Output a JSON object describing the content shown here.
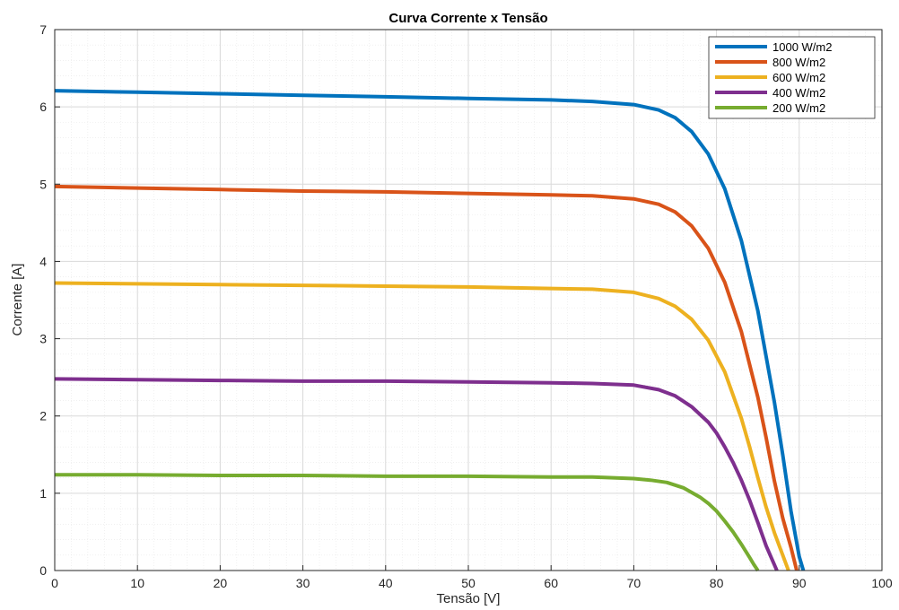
{
  "chart_data": {
    "type": "line",
    "title": "Curva Corrente x Tensão",
    "xlabel": "Tensão [V]",
    "ylabel": "Corrente [A]",
    "xlim": [
      0,
      100
    ],
    "ylim": [
      0,
      7
    ],
    "xticks": [
      0,
      10,
      20,
      30,
      40,
      50,
      60,
      70,
      80,
      90,
      100
    ],
    "yticks": [
      0,
      1,
      2,
      3,
      4,
      5,
      6,
      7
    ],
    "grid": true,
    "minor_grid": true,
    "legend_position": "top-right",
    "series": [
      {
        "name": "1000 W/m2",
        "color": "#0072BD",
        "x": [
          0,
          10,
          20,
          30,
          40,
          50,
          60,
          65,
          70,
          73,
          75,
          77,
          79,
          81,
          83,
          85,
          87,
          88,
          89,
          90,
          90.5
        ],
        "y": [
          6.21,
          6.19,
          6.17,
          6.15,
          6.13,
          6.11,
          6.09,
          6.07,
          6.03,
          5.96,
          5.86,
          5.68,
          5.39,
          4.94,
          4.27,
          3.36,
          2.18,
          1.5,
          0.77,
          0.18,
          0
        ]
      },
      {
        "name": "800 W/m2",
        "color": "#D95319",
        "x": [
          0,
          10,
          20,
          30,
          40,
          50,
          60,
          65,
          70,
          73,
          75,
          77,
          79,
          81,
          83,
          85,
          86,
          87,
          88,
          89,
          89.7
        ],
        "y": [
          4.97,
          4.95,
          4.93,
          4.91,
          4.9,
          4.88,
          4.86,
          4.85,
          4.81,
          4.74,
          4.64,
          4.46,
          4.17,
          3.73,
          3.09,
          2.24,
          1.72,
          1.16,
          0.68,
          0.3,
          0
        ]
      },
      {
        "name": "600 W/m2",
        "color": "#EDB120",
        "x": [
          0,
          10,
          20,
          30,
          40,
          50,
          60,
          65,
          70,
          73,
          75,
          77,
          79,
          81,
          83,
          84,
          85,
          86,
          87,
          88,
          88.7
        ],
        "y": [
          3.72,
          3.71,
          3.7,
          3.69,
          3.68,
          3.67,
          3.65,
          3.64,
          3.6,
          3.52,
          3.42,
          3.25,
          2.98,
          2.57,
          1.97,
          1.6,
          1.2,
          0.82,
          0.49,
          0.2,
          0
        ]
      },
      {
        "name": "400 W/m2",
        "color": "#7E2F8E",
        "x": [
          0,
          10,
          20,
          30,
          40,
          50,
          60,
          65,
          70,
          73,
          75,
          77,
          79,
          80,
          81,
          82,
          83,
          84,
          85,
          86,
          87.3
        ],
        "y": [
          2.48,
          2.47,
          2.46,
          2.45,
          2.45,
          2.44,
          2.43,
          2.42,
          2.4,
          2.34,
          2.26,
          2.12,
          1.92,
          1.78,
          1.6,
          1.4,
          1.17,
          0.91,
          0.62,
          0.32,
          0
        ]
      },
      {
        "name": "200 W/m2",
        "color": "#77AC30",
        "x": [
          0,
          10,
          20,
          30,
          40,
          50,
          60,
          65,
          70,
          72,
          74,
          76,
          78,
          79,
          80,
          81,
          82,
          83,
          84,
          84.5,
          85
        ],
        "y": [
          1.24,
          1.24,
          1.23,
          1.23,
          1.22,
          1.22,
          1.21,
          1.21,
          1.19,
          1.17,
          1.14,
          1.07,
          0.95,
          0.87,
          0.77,
          0.64,
          0.5,
          0.34,
          0.17,
          0.08,
          0
        ]
      }
    ]
  }
}
